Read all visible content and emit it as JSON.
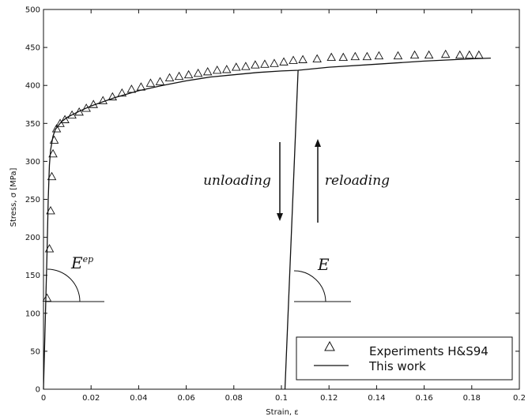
{
  "chart_data": {
    "type": "line",
    "title": "",
    "xlabel": "Strain, ε",
    "ylabel": "Stress, σ [MPa]",
    "xlim": [
      0,
      0.2
    ],
    "ylim": [
      0,
      500
    ],
    "xticks": [
      0,
      0.02,
      0.04,
      0.06,
      0.08,
      0.1,
      0.12,
      0.14,
      0.16,
      0.18,
      0.2
    ],
    "xtick_labels": [
      "0",
      "0.02",
      "0.04",
      "0.06",
      "0.08",
      "0.1",
      "0.12",
      "0.14",
      "0.16",
      "0.18",
      "0.2"
    ],
    "yticks": [
      0,
      50,
      100,
      150,
      200,
      250,
      300,
      350,
      400,
      450,
      500
    ],
    "ytick_labels": [
      "0",
      "50",
      "100",
      "150",
      "200",
      "250",
      "300",
      "350",
      "400",
      "450",
      "500"
    ],
    "grid": false,
    "legend_position": "bottom-right",
    "series": [
      {
        "name": "Experiments H&S94",
        "kind": "scatter",
        "marker": "triangle-open",
        "x": [
          0.0015,
          0.0025,
          0.003,
          0.0035,
          0.004,
          0.0045,
          0.0055,
          0.007,
          0.009,
          0.012,
          0.015,
          0.018,
          0.021,
          0.025,
          0.029,
          0.033,
          0.037,
          0.041,
          0.045,
          0.049,
          0.053,
          0.057,
          0.061,
          0.065,
          0.069,
          0.073,
          0.077,
          0.081,
          0.085,
          0.089,
          0.093,
          0.097,
          0.101,
          0.105,
          0.109,
          0.115,
          0.121,
          0.126,
          0.131,
          0.136,
          0.141,
          0.149,
          0.156,
          0.162,
          0.169,
          0.175,
          0.179,
          0.183
        ],
        "y": [
          120,
          185,
          235,
          280,
          310,
          328,
          343,
          350,
          355,
          361,
          365,
          370,
          375,
          380,
          385,
          390,
          395,
          398,
          403,
          405,
          410,
          412,
          414,
          416,
          418,
          420,
          421,
          424,
          425,
          427,
          428,
          429,
          431,
          433,
          434,
          435,
          437,
          437,
          438,
          438,
          439,
          439,
          440,
          440,
          441,
          440,
          440,
          440
        ]
      },
      {
        "name": "This work",
        "kind": "line",
        "x": [
          0,
          0.0015,
          0.002,
          0.0025,
          0.003,
          0.004,
          0.005,
          0.0075,
          0.01,
          0.015,
          0.02,
          0.03,
          0.04,
          0.05,
          0.06,
          0.07,
          0.08,
          0.09,
          0.1,
          0.107,
          0.12,
          0.14,
          0.16,
          0.18,
          0.188
        ],
        "y": [
          0,
          180,
          250,
          295,
          315,
          333,
          342,
          352,
          358,
          366,
          373,
          384,
          393,
          400,
          406,
          411,
          414,
          417,
          419,
          420,
          424,
          428,
          432,
          435,
          436
        ]
      },
      {
        "name": "",
        "kind": "line",
        "x": [
          0.107,
          0.1015
        ],
        "y": [
          420,
          0
        ]
      }
    ],
    "annotations": [
      {
        "text": "unloading",
        "arrow": "down"
      },
      {
        "text": "reloading",
        "arrow": "up"
      },
      {
        "text": "E",
        "superscript": "ep"
      },
      {
        "text": "E",
        "superscript": ""
      }
    ]
  }
}
